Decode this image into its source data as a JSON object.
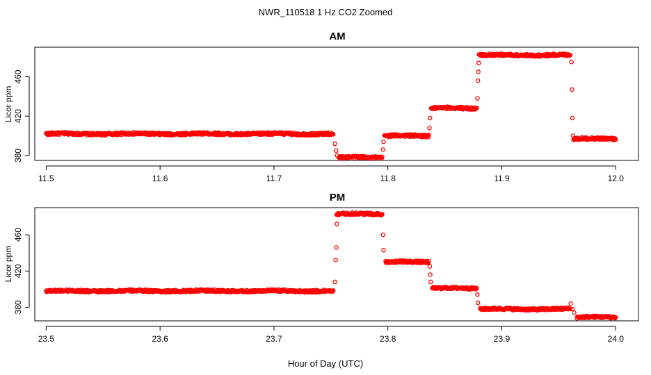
{
  "figure": {
    "title": "NWR_110518  1 Hz CO2 Zoomed",
    "xlabel": "Hour of Day (UTC)"
  },
  "chart_data": [
    {
      "type": "scatter",
      "title": "AM",
      "xlabel": "Hour of Day (UTC)",
      "ylabel": "Licor ppm",
      "xlim": [
        11.49,
        12.02
      ],
      "ylim": [
        375,
        490
      ],
      "x_ticks": [
        "11.5",
        "11.6",
        "11.7",
        "11.8",
        "11.9",
        "12.0"
      ],
      "y_ticks": [
        "380",
        "420",
        "460"
      ],
      "color": "#ff0000",
      "marker": "open-circle",
      "segments": [
        {
          "x": [
            11.5,
            11.752
          ],
          "y": 402
        },
        {
          "x": [
            11.757,
            11.795
          ],
          "y": 378
        },
        {
          "x": [
            11.797,
            11.836
          ],
          "y": 400
        },
        {
          "x": [
            11.838,
            11.878
          ],
          "y": 428
        },
        {
          "x": [
            11.88,
            11.96
          ],
          "y": 482
        },
        {
          "x": [
            11.963,
            12.0
          ],
          "y": 397
        }
      ],
      "transitions": [
        {
          "x": 11.7535,
          "y": 392
        },
        {
          "x": 11.7545,
          "y": 385
        },
        {
          "x": 11.7555,
          "y": 380
        },
        {
          "x": 11.7957,
          "y": 386
        },
        {
          "x": 11.7962,
          "y": 394
        },
        {
          "x": 11.8365,
          "y": 408
        },
        {
          "x": 11.837,
          "y": 418
        },
        {
          "x": 11.8786,
          "y": 438
        },
        {
          "x": 11.879,
          "y": 456
        },
        {
          "x": 11.8794,
          "y": 465
        },
        {
          "x": 11.8798,
          "y": 474
        },
        {
          "x": 11.9612,
          "y": 475
        },
        {
          "x": 11.9617,
          "y": 447
        },
        {
          "x": 11.962,
          "y": 418
        },
        {
          "x": 11.9625,
          "y": 400
        }
      ]
    },
    {
      "type": "scatter",
      "title": "PM",
      "xlabel": "Hour of Day (UTC)",
      "ylabel": "Licor ppm",
      "xlim": [
        23.49,
        24.02
      ],
      "ylim": [
        365,
        490
      ],
      "x_ticks": [
        "23.5",
        "23.6",
        "23.7",
        "23.8",
        "23.9",
        "24.0"
      ],
      "y_ticks": [
        "380",
        "420",
        "460"
      ],
      "color": "#ff0000",
      "marker": "open-circle",
      "segments": [
        {
          "x": [
            23.5,
            23.752
          ],
          "y": 398
        },
        {
          "x": [
            23.755,
            23.795
          ],
          "y": 483
        },
        {
          "x": [
            23.798,
            23.836
          ],
          "y": 430
        },
        {
          "x": [
            23.839,
            23.878
          ],
          "y": 401
        },
        {
          "x": [
            23.881,
            23.96
          ],
          "y": 378
        },
        {
          "x": [
            23.966,
            24.0
          ],
          "y": 369
        }
      ],
      "transitions": [
        {
          "x": 23.7535,
          "y": 408
        },
        {
          "x": 23.7541,
          "y": 432
        },
        {
          "x": 23.7547,
          "y": 446
        },
        {
          "x": 23.7553,
          "y": 472
        },
        {
          "x": 23.7958,
          "y": 460
        },
        {
          "x": 23.7962,
          "y": 443
        },
        {
          "x": 23.8368,
          "y": 425
        },
        {
          "x": 23.8372,
          "y": 416
        },
        {
          "x": 23.8376,
          "y": 408
        },
        {
          "x": 23.8786,
          "y": 394
        },
        {
          "x": 23.879,
          "y": 385
        },
        {
          "x": 23.9605,
          "y": 384
        },
        {
          "x": 23.962,
          "y": 378
        },
        {
          "x": 23.9635,
          "y": 374
        }
      ]
    }
  ]
}
